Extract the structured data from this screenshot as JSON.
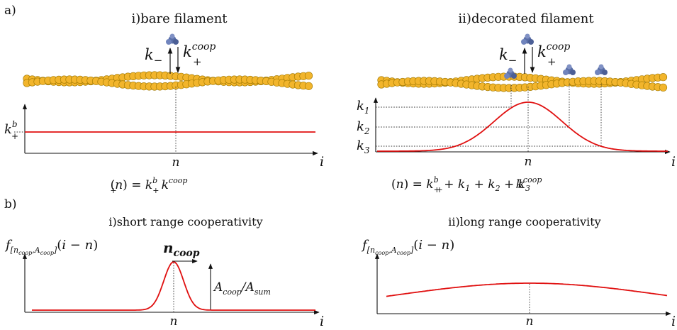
{
  "panel_a": {
    "label": "a)",
    "left": {
      "title": "i)bare filament",
      "k_minus": "k",
      "k_minus_sub": "−",
      "k_plus": "k",
      "k_plus_sup": "coop",
      "k_plus_sub": "+",
      "y_tick": "k",
      "y_tick_sup": "b",
      "y_tick_sub": "+",
      "x_tick": "n",
      "x_axis": "i",
      "equation": "k+coop(n) = k+b"
    },
    "right": {
      "title": "ii)decorated filament",
      "k_minus": "k",
      "k_minus_sub": "−",
      "k_plus": "k",
      "k_plus_sup": "coop",
      "k_plus_sub": "+",
      "y_ticks": [
        "k",
        "k",
        "k"
      ],
      "y_tick_subs": [
        "1",
        "2",
        "3"
      ],
      "x_tick": "n",
      "x_axis": "i",
      "equation": "k+coop(n) = k+b + k1 + k2 + k3"
    }
  },
  "panel_b": {
    "label": "b)",
    "left": {
      "title": "i)short range cooperativity",
      "y_label": "f[ncoop,Acoop](i − n)",
      "width_label": "n",
      "width_label_sub": "coop",
      "height_label": "A",
      "height_label_sub": "coop",
      "height_label_mid": "/A",
      "height_label_sub2": "sum",
      "x_tick": "n",
      "x_axis": "i"
    },
    "right": {
      "title": "ii)long range cooperativity",
      "y_label": "f[ncoop,Acoop](i − n)",
      "x_tick": "n",
      "x_axis": "i"
    }
  },
  "colors": {
    "curve": "#e01010",
    "actin": "#f2b52c",
    "protein": "#5a6fa8"
  }
}
